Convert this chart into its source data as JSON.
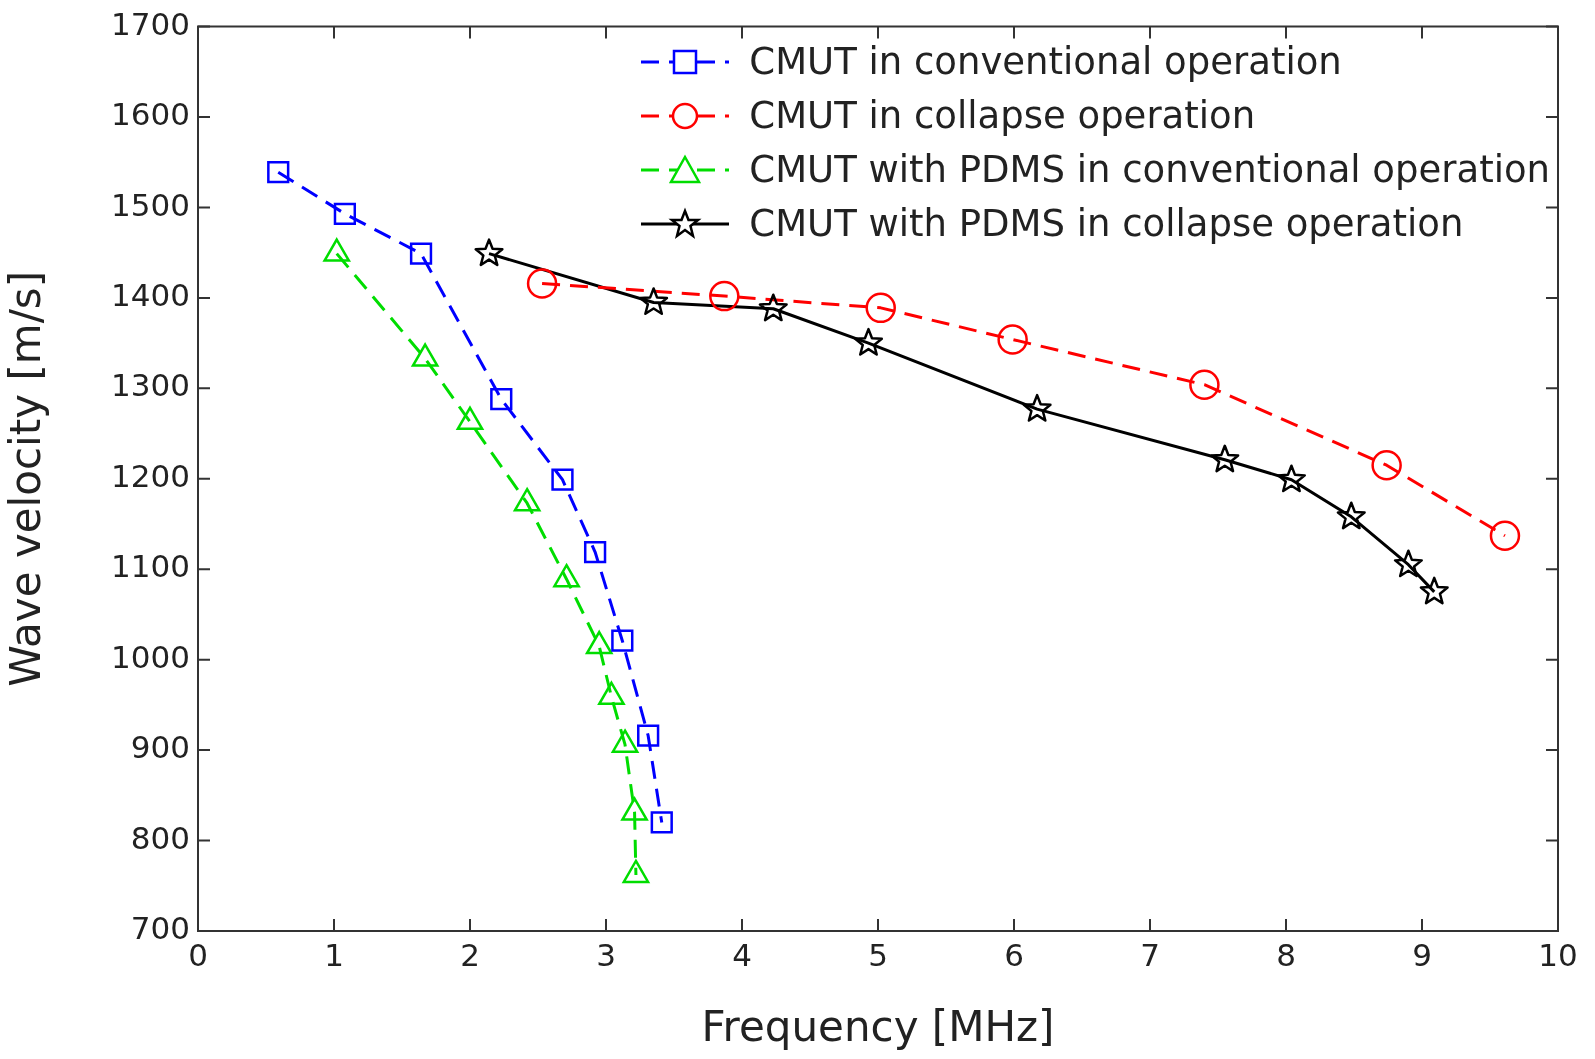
{
  "chart_data": {
    "type": "line",
    "xlabel": "Frequency [MHz]",
    "ylabel": "Wave velocity [m/s]",
    "xlim": [
      0,
      10
    ],
    "xticks": [
      0,
      1,
      2,
      3,
      4,
      5,
      6,
      7,
      8,
      9,
      10
    ],
    "ylim": [
      700,
      1700
    ],
    "yticks": [
      700,
      800,
      900,
      1000,
      1100,
      1200,
      1300,
      1400,
      1500,
      1600,
      1700
    ],
    "legend": "top right",
    "series": [
      {
        "name": "CMUT in conventional operation",
        "color": "#0000ff",
        "marker": "square",
        "line_style": "dashed",
        "x": [
          0.59,
          1.08,
          1.64,
          2.23,
          2.68,
          2.92,
          3.12,
          3.31,
          3.41
        ],
        "values": [
          1539,
          1493,
          1449,
          1288,
          1199,
          1119,
          1021,
          916,
          820
        ]
      },
      {
        "name": "CMUT in collapse operation",
        "color": "#ff0000",
        "marker": "circle",
        "line_style": "dashed",
        "x": [
          2.53,
          3.87,
          5.02,
          5.99,
          7.4,
          8.74,
          9.61
        ],
        "values": [
          1416,
          1402,
          1389,
          1354,
          1304,
          1215,
          1137
        ]
      },
      {
        "name": "CMUT with PDMS in conventional operation",
        "color": "#00dd00",
        "marker": "triangle",
        "line_style": "dashed",
        "x": [
          1.02,
          1.67,
          2.0,
          2.42,
          2.71,
          2.95,
          3.04,
          3.14,
          3.21,
          3.22
        ],
        "values": [
          1449,
          1333,
          1263,
          1173,
          1089,
          1015,
          959,
          906,
          831,
          762
        ]
      },
      {
        "name": "CMUT with PDMS in collapse operation",
        "color": "#000000",
        "marker": "star",
        "line_style": "solid",
        "x": [
          2.14,
          3.35,
          4.23,
          4.93,
          6.17,
          7.55,
          8.04,
          8.48,
          8.9,
          9.09
        ],
        "values": [
          1449,
          1395,
          1388,
          1350,
          1277,
          1221,
          1199,
          1158,
          1105,
          1075
        ]
      }
    ]
  }
}
